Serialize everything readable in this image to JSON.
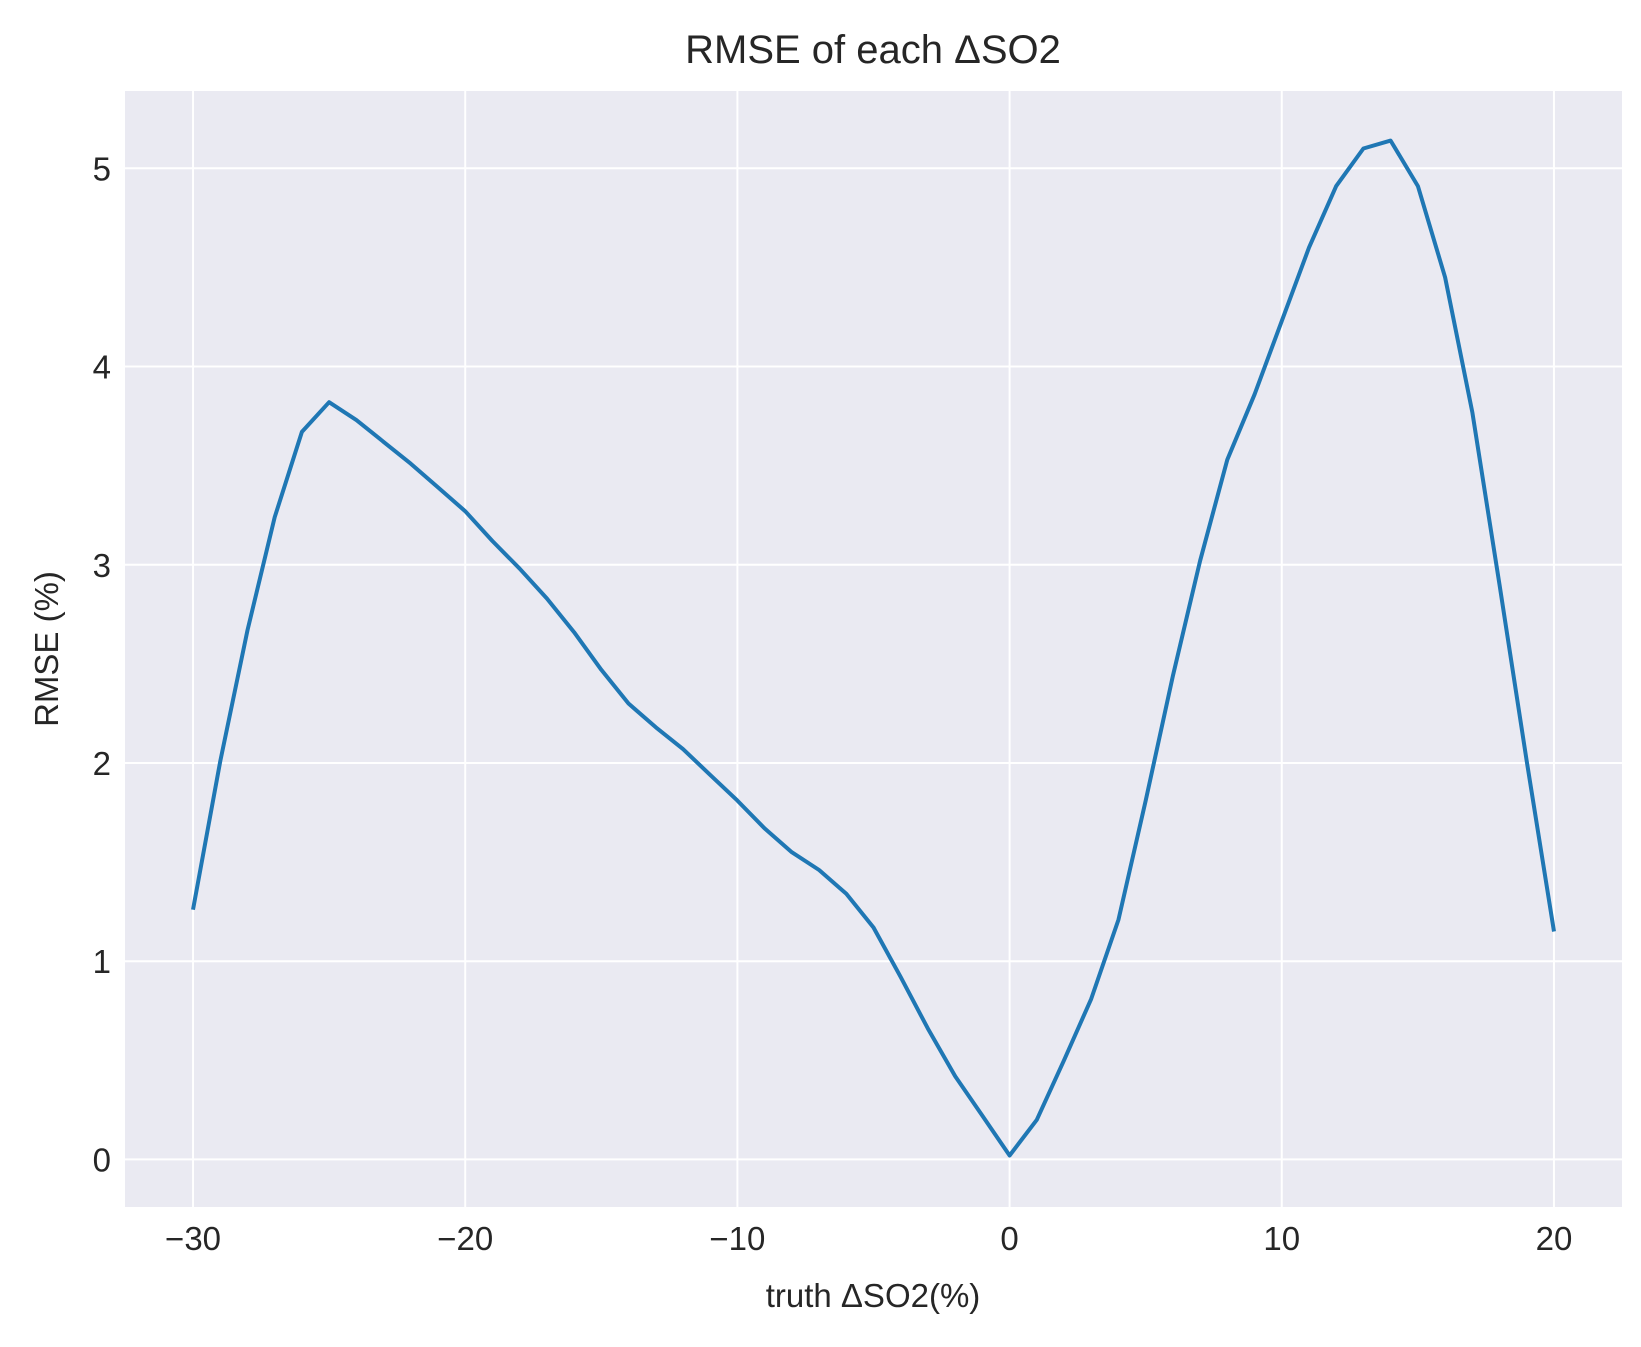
{
  "chart_data": {
    "type": "line",
    "title": "RMSE of each ΔSO2",
    "xlabel": "truth ΔSO2(%)",
    "ylabel": "RMSE (%)",
    "xlim": [
      -32.5,
      22.5
    ],
    "ylim": [
      -0.24,
      5.39
    ],
    "xticks": [
      -30,
      -20,
      -10,
      0,
      10,
      20
    ],
    "xtick_labels": [
      "−30",
      "−20",
      "−10",
      "0",
      "10",
      "20"
    ],
    "yticks": [
      0,
      1,
      2,
      3,
      4,
      5
    ],
    "ytick_labels": [
      "0",
      "1",
      "2",
      "3",
      "4",
      "5"
    ],
    "grid": true,
    "series": [
      {
        "color": "#1f77b4",
        "x": [
          -30,
          -29,
          -28,
          -27,
          -26,
          -25,
          -24,
          -23,
          -22,
          -21,
          -20,
          -19,
          -18,
          -17,
          -16,
          -15,
          -14,
          -13,
          -12,
          -11,
          -10,
          -9,
          -8,
          -7,
          -6,
          -5,
          -4,
          -3,
          -2,
          -1,
          0,
          1,
          2,
          3,
          4,
          5,
          6,
          7,
          8,
          9,
          10,
          11,
          12,
          13,
          14,
          15,
          16,
          17,
          18,
          19,
          20
        ],
        "y": [
          1.26,
          2.01,
          2.67,
          3.24,
          3.67,
          3.82,
          3.73,
          3.62,
          3.51,
          3.39,
          3.27,
          3.12,
          2.98,
          2.83,
          2.66,
          2.47,
          2.3,
          2.18,
          2.07,
          1.94,
          1.81,
          1.67,
          1.55,
          1.46,
          1.34,
          1.17,
          0.92,
          0.66,
          0.42,
          0.22,
          0.02,
          0.2,
          0.5,
          0.81,
          1.21,
          1.81,
          2.44,
          3.02,
          3.53,
          3.86,
          4.23,
          4.6,
          4.91,
          5.1,
          5.14,
          4.91,
          4.45,
          3.77,
          2.9,
          2.01,
          1.15
        ]
      }
    ]
  }
}
